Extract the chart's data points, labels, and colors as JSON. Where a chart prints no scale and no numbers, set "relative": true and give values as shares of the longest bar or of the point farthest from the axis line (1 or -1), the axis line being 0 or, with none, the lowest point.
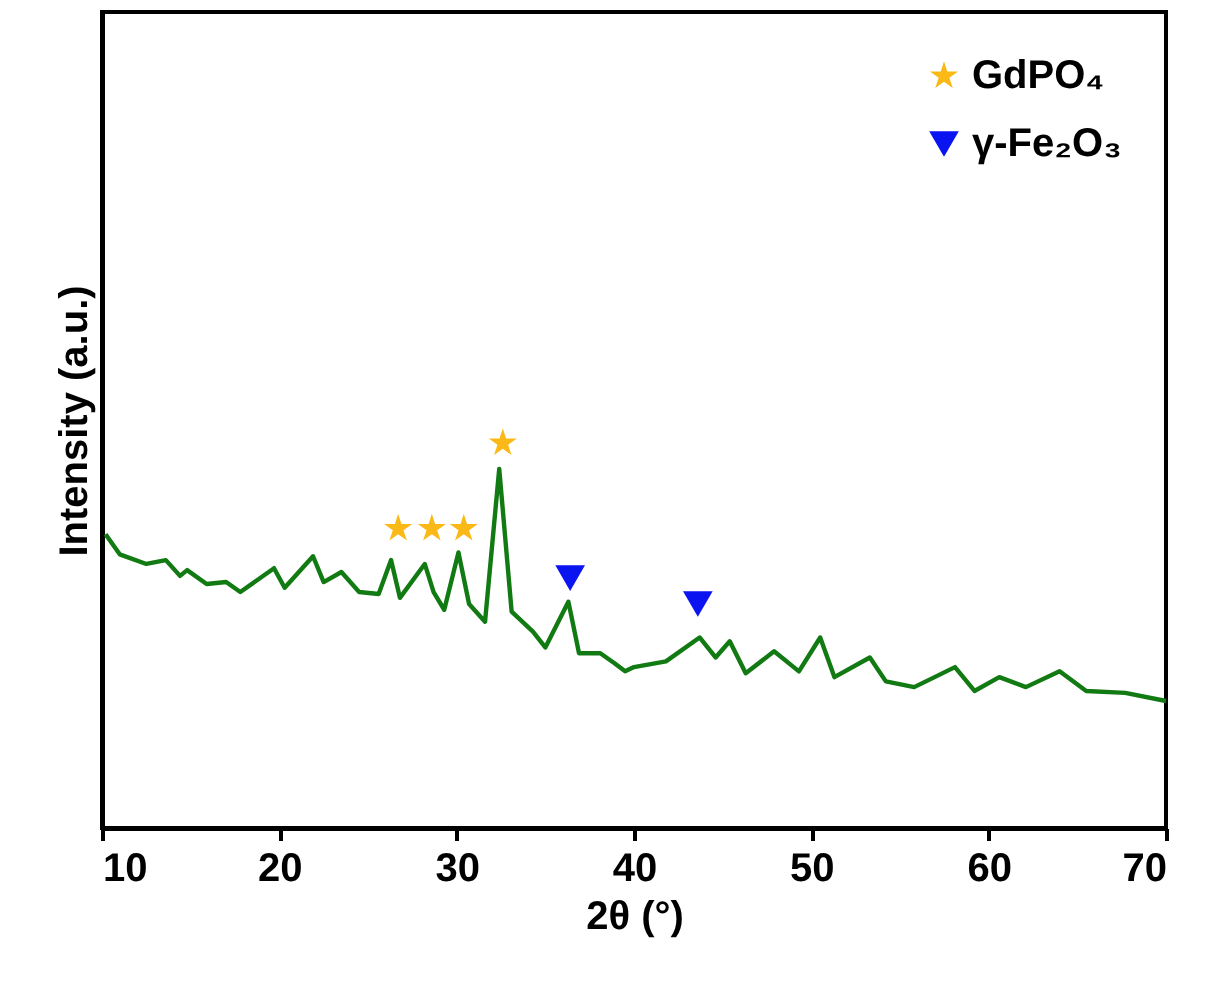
{
  "chart_data": {
    "type": "line",
    "xlabel": "2θ (°)",
    "ylabel": "Intensity (a.u.)",
    "relative": true,
    "xlim": [
      10,
      70
    ],
    "xticks": [
      10,
      20,
      30,
      40,
      50,
      60,
      70
    ],
    "tick_labels": "x",
    "grid": false,
    "legend": "top right",
    "series": [
      {
        "color": "#127a12",
        "marker": "none",
        "x": [
          10.2,
          11.0,
          12.5,
          13.6,
          14.4,
          14.8,
          15.9,
          17.0,
          17.8,
          19.7,
          20.3,
          21.9,
          22.5,
          23.5,
          24.5,
          25.6,
          26.3,
          26.8,
          28.2,
          28.7,
          29.3,
          30.1,
          30.7,
          31.6,
          32.4,
          33.1,
          34.3,
          35.0,
          36.3,
          36.9,
          38.1,
          38.9,
          39.5,
          40.0,
          41.8,
          43.7,
          44.6,
          45.4,
          46.3,
          47.9,
          49.3,
          50.5,
          51.3,
          53.3,
          54.2,
          55.8,
          58.1,
          59.2,
          60.6,
          62.1,
          64.0,
          65.5,
          67.7,
          70.0
        ],
        "values": [
          0.763,
          0.711,
          0.686,
          0.696,
          0.655,
          0.67,
          0.634,
          0.639,
          0.613,
          0.675,
          0.624,
          0.706,
          0.639,
          0.665,
          0.613,
          0.608,
          0.696,
          0.598,
          0.686,
          0.613,
          0.567,
          0.716,
          0.582,
          0.536,
          0.933,
          0.562,
          0.51,
          0.469,
          0.588,
          0.454,
          0.454,
          0.428,
          0.407,
          0.418,
          0.433,
          0.495,
          0.443,
          0.485,
          0.402,
          0.459,
          0.407,
          0.495,
          0.392,
          0.443,
          0.381,
          0.366,
          0.418,
          0.356,
          0.392,
          0.366,
          0.407,
          0.356,
          0.351,
          0.33
        ]
      },
      {
        "type": "scatter",
        "name": "GdPO₄",
        "color": "#fbb917",
        "marker": "star",
        "x": [
          26.7,
          28.6,
          30.4,
          32.6
        ],
        "values": [
          0.778,
          0.778,
          0.778,
          1.0
        ]
      },
      {
        "type": "scatter",
        "name": "γ-Fe₂O₃",
        "color": "#0a14f0",
        "marker": "triangle",
        "x": [
          36.4,
          43.6
        ],
        "values": [
          0.649,
          0.582
        ]
      }
    ]
  }
}
